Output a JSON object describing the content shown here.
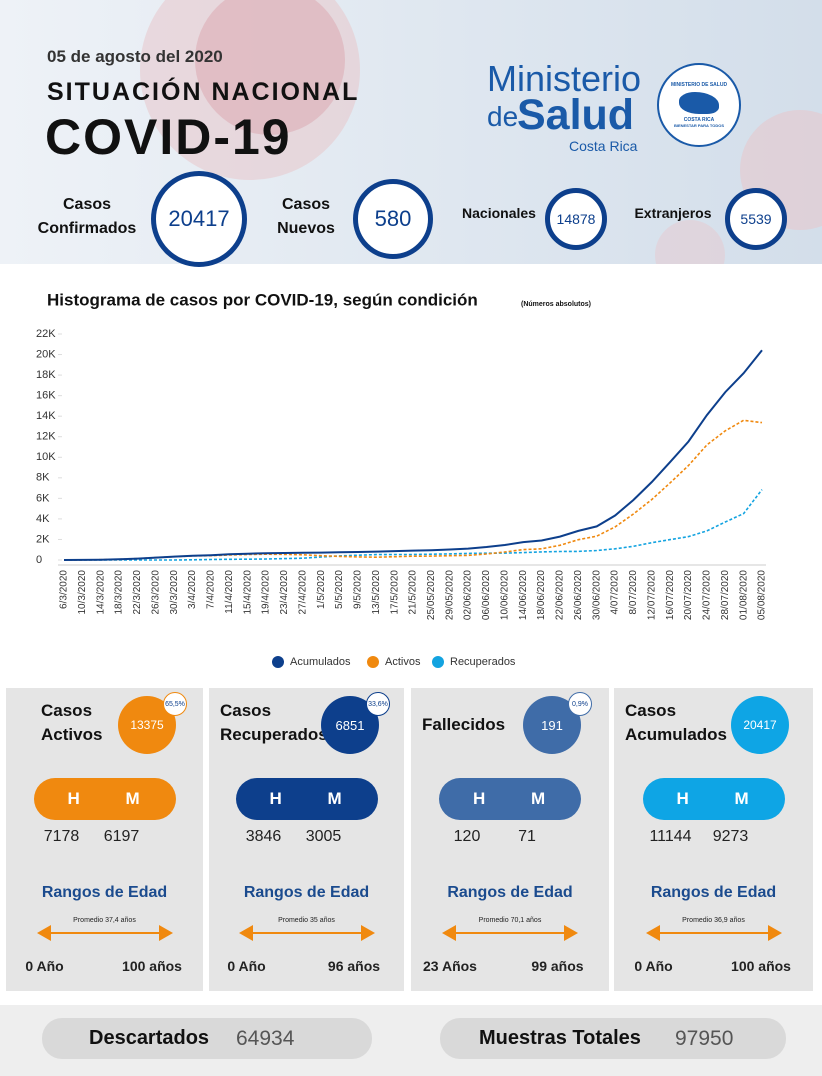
{
  "header": {
    "date": "05 de agosto del 2020",
    "subtitle": "SITUACIÓN NACIONAL",
    "title": "COVID-19",
    "logo": {
      "line1": "Ministerio",
      "line2a": "de",
      "line2b": "Salud",
      "line3": "Costa Rica",
      "seal_top": "MINISTERIO DE SALUD",
      "seal_mid": "COSTA RICA",
      "seal_bottom": "BIENESTAR PARA TODOS"
    }
  },
  "stats": [
    {
      "label": [
        "Casos",
        "Confirmados"
      ],
      "value": 20417
    },
    {
      "label": [
        "Casos",
        "Nuevos"
      ],
      "value": 580
    },
    {
      "label": [
        "Nacionales"
      ],
      "value": 14878
    },
    {
      "label": [
        "Extranjeros"
      ],
      "value": 5539
    }
  ],
  "chart_data": {
    "type": "line",
    "title": "Histograma de casos por COVID-19, según condición",
    "subtitle": "(Números absolutos)",
    "categories": [
      "6/3/2020",
      "10/3/2020",
      "14/3/2020",
      "18/3/2020",
      "22/3/2020",
      "26/3/2020",
      "30/3/2020",
      "3/4/2020",
      "7/4/2020",
      "11/4/2020",
      "15/4/2020",
      "19/4/2020",
      "23/4/2020",
      "27/4/2020",
      "1/5/2020",
      "5/5/2020",
      "9/5/2020",
      "13/5/2020",
      "17/5/2020",
      "21/5/2020",
      "25/05/2020",
      "29/05/2020",
      "02/06/2020",
      "06/06/2020",
      "10/06/2020",
      "14/06/2020",
      "18/06/2020",
      "22/06/2020",
      "26/06/2020",
      "30/06/2020",
      "4/07/2020",
      "8/07/2020",
      "12/07/2020",
      "16/07/2020",
      "20/07/2020",
      "24/07/2020",
      "28/07/2020",
      "01/08/2020",
      "05/08/2020"
    ],
    "series": [
      {
        "name": "Acumulados",
        "color": "#0d3f8c",
        "dashed": false,
        "values": [
          1,
          9,
          27,
          69,
          134,
          231,
          330,
          416,
          467,
          558,
          618,
          662,
          686,
          697,
          725,
          761,
          778,
          815,
          863,
          911,
          951,
          1022,
          1105,
          1263,
          1461,
          1744,
          1896,
          2277,
          2836,
          3269,
          4332,
          5836,
          7596,
          9546,
          11534,
          14104,
          16344,
          18187,
          20417
        ]
      },
      {
        "name": "Activos",
        "color": "#f0890f",
        "dashed": true,
        "values": [
          1,
          9,
          27,
          69,
          132,
          229,
          326,
          398,
          420,
          484,
          532,
          561,
          545,
          510,
          423,
          352,
          298,
          277,
          322,
          366,
          378,
          419,
          449,
          584,
          780,
          1012,
          1086,
          1431,
          1974,
          2320,
          3218,
          4474,
          5886,
          7519,
          9202,
          11203,
          12576,
          13600,
          13375
        ]
      },
      {
        "name": "Recuperados",
        "color": "#13a3e0",
        "dashed": true,
        "values": [
          0,
          0,
          0,
          0,
          2,
          2,
          2,
          16,
          45,
          71,
          82,
          96,
          136,
          180,
          295,
          401,
          471,
          529,
          532,
          536,
          564,
          590,
          643,
          666,
          667,
          716,
          789,
          826,
          840,
          925,
          1090,
          1337,
          1683,
          1986,
          2276,
          2835,
          3700,
          4519,
          6851
        ]
      }
    ],
    "ylim": [
      0,
      22000
    ],
    "yticks": [
      0,
      {
        "value": 2000,
        "label": "2K"
      },
      {
        "value": 4000,
        "label": "4K"
      },
      {
        "value": 6000,
        "label": "6K"
      },
      {
        "value": 8000,
        "label": "8K"
      },
      {
        "value": 10000,
        "label": "10K"
      },
      {
        "value": 12000,
        "label": "12K"
      },
      {
        "value": 14000,
        "label": "14K"
      },
      {
        "value": 16000,
        "label": "16K"
      },
      {
        "value": 18000,
        "label": "18K"
      },
      {
        "value": 20000,
        "label": "20K"
      },
      {
        "value": 22000,
        "label": "22K"
      }
    ],
    "grid": false,
    "legend": "bottom"
  },
  "cards": [
    {
      "title": [
        "Casos",
        "Activos"
      ],
      "value": 13375,
      "percent": "65,5%",
      "color": "#f0890f",
      "h_label": "H",
      "m_label": "M",
      "h": 7178,
      "m": 6197,
      "range_title": "Rangos de Edad",
      "average": "Promedio 37,4 años",
      "min_age": "0 Año",
      "max_age": "100 años"
    },
    {
      "title": [
        "Casos",
        "Recuperados"
      ],
      "value": 6851,
      "percent": "33,6%",
      "color": "#0d3f8c",
      "h_label": "H",
      "m_label": "M",
      "h": 3846,
      "m": 3005,
      "range_title": "Rangos de Edad",
      "average": "Promedio 35 años",
      "min_age": "0 Año",
      "max_age": "96 años"
    },
    {
      "title": [
        "Fallecidos"
      ],
      "value": 191,
      "percent": "0,9%",
      "color": "#3f6ca8",
      "h_label": "H",
      "m_label": "M",
      "h": 120,
      "m": 71,
      "range_title": "Rangos de Edad",
      "average": "Promedio 70,1 años",
      "min_age": "23 Años",
      "max_age": "99 años"
    },
    {
      "title": [
        "Casos",
        "Acumulados"
      ],
      "value": 20417,
      "percent": null,
      "color": "#0ea5e5",
      "h_label": "H",
      "m_label": "M",
      "h": 11144,
      "m": 9273,
      "range_title": "Rangos de Edad",
      "average": "Promedio 36,9 años",
      "min_age": "0 Año",
      "max_age": "100 años"
    }
  ],
  "footer": [
    {
      "label": "Descartados",
      "value": 64934
    },
    {
      "label": "Muestras Totales",
      "value": 97950
    }
  ]
}
